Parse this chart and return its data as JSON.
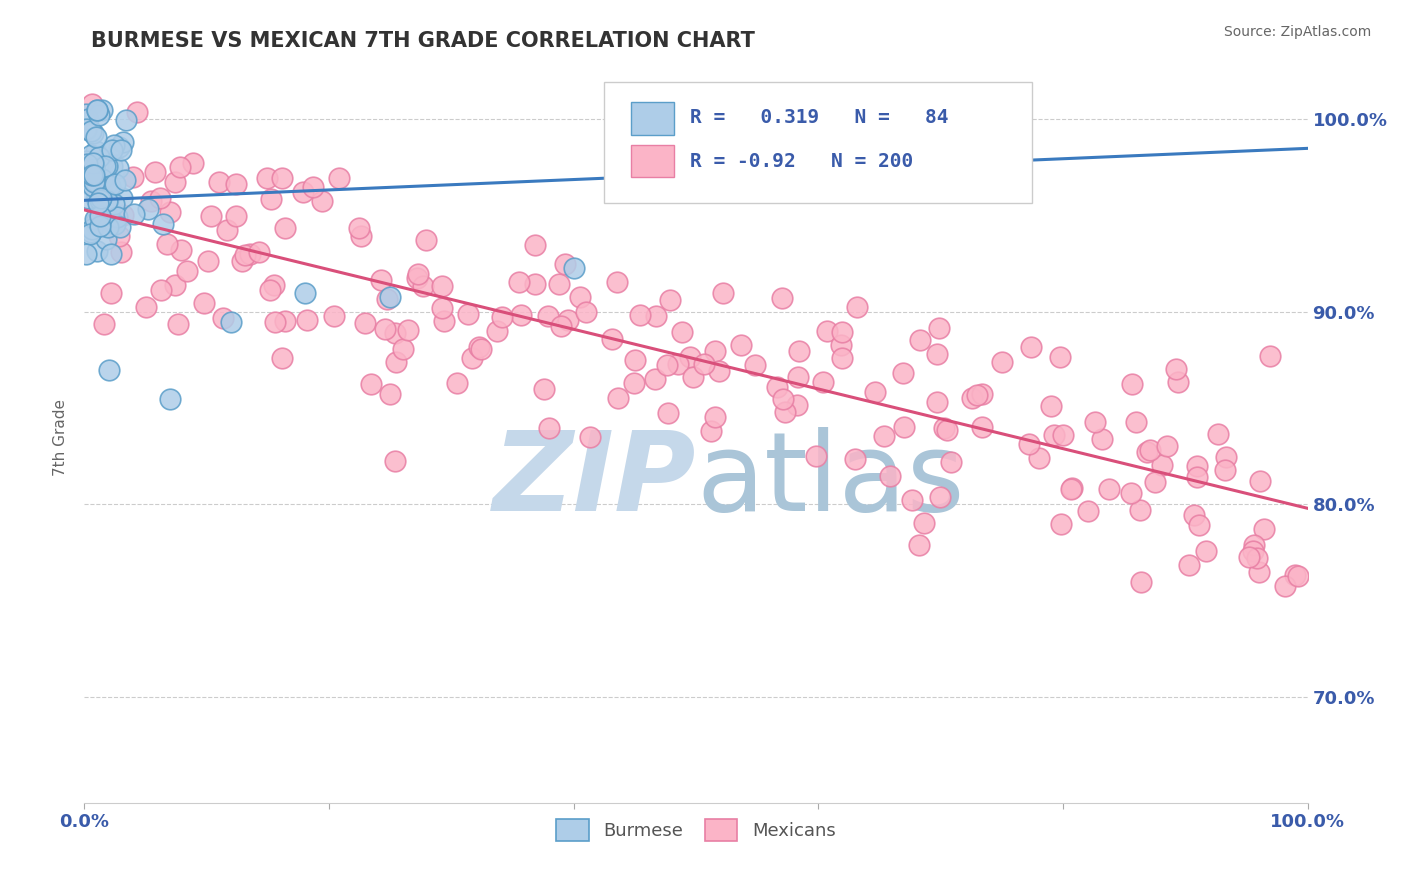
{
  "title": "BURMESE VS MEXICAN 7TH GRADE CORRELATION CHART",
  "source_text": "Source: ZipAtlas.com",
  "ylabel": "7th Grade",
  "xlim": [
    0.0,
    1.0
  ],
  "ylim": [
    0.645,
    1.025
  ],
  "yticks": [
    0.7,
    0.8,
    0.9,
    1.0
  ],
  "ytick_labels": [
    "70.0%",
    "80.0%",
    "90.0%",
    "100.0%"
  ],
  "xticks": [
    0.0,
    0.2,
    0.4,
    0.6,
    0.8,
    1.0
  ],
  "xtick_labels": [
    "0.0%",
    "",
    "",
    "",
    "",
    "100.0%"
  ],
  "burmese_facecolor": "#aecde8",
  "burmese_edgecolor": "#5b9ec9",
  "mexican_facecolor": "#fbb4c7",
  "mexican_edgecolor": "#e87fa4",
  "blue_line_color": "#3a7abf",
  "pink_line_color": "#d94f7a",
  "R_burmese": 0.319,
  "N_burmese": 84,
  "R_mexican": -0.92,
  "N_mexican": 200,
  "legend_burmese": "Burmese",
  "legend_mexican": "Mexicans",
  "background_color": "#ffffff",
  "grid_color": "#cccccc",
  "title_color": "#333333",
  "tick_color": "#3a5baa",
  "ylabel_color": "#666666",
  "source_color": "#666666",
  "watermark_zip_color": "#c5d8ea",
  "watermark_atlas_color": "#aac5d8",
  "legend_box_edge": "#cccccc"
}
